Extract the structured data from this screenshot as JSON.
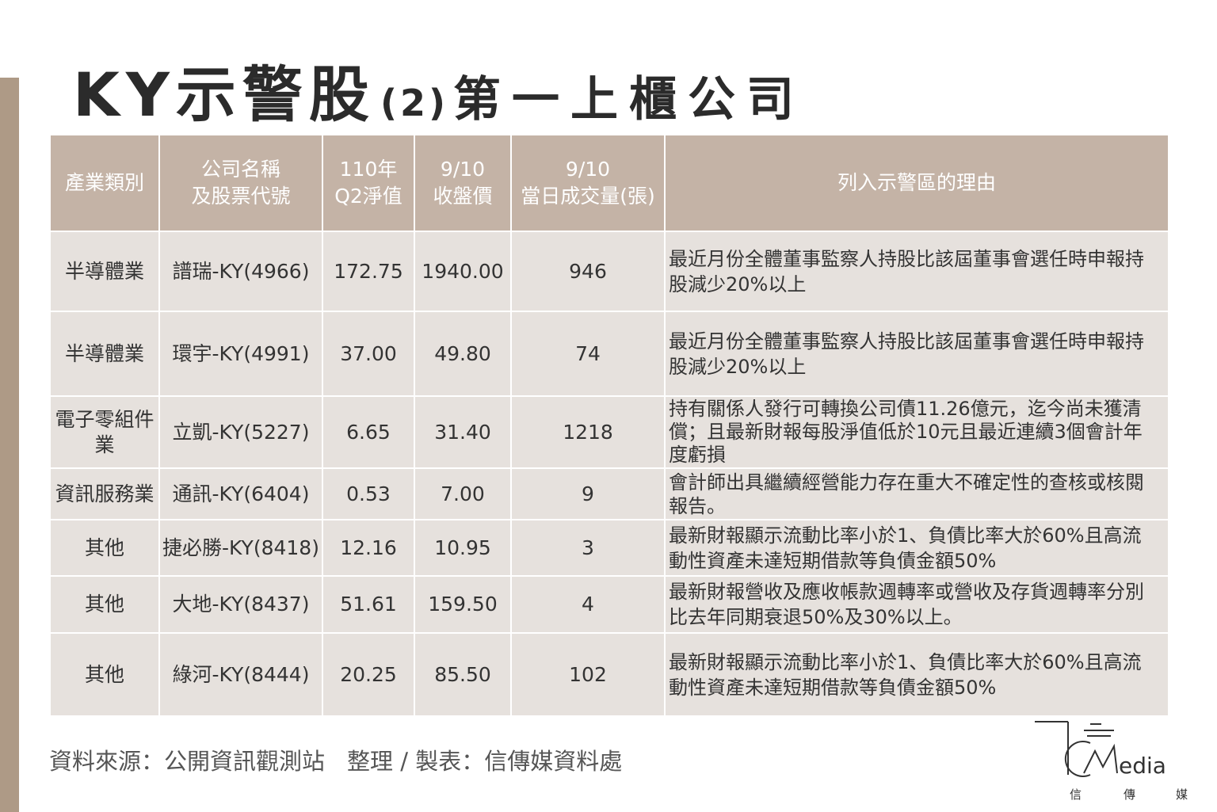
{
  "title": {
    "main": "KY示警股",
    "paren": "(2)",
    "sub": "第一上櫃公司"
  },
  "table": {
    "headers": [
      [
        "產業類別"
      ],
      [
        "公司名稱",
        "及股票代號"
      ],
      [
        "110年",
        "Q2淨值"
      ],
      [
        "9/10",
        "收盤價"
      ],
      [
        "9/10",
        "當日成交量(張)"
      ],
      [
        "列入示警區的理由"
      ]
    ],
    "rows": [
      {
        "industry": [
          "半導體業"
        ],
        "company": "譜瑞-KY(4966)",
        "nav": "172.75",
        "close": "1940.00",
        "volume": "946",
        "reason": [
          "最近月份全體董事監察人持股比該屆董事會選任時申報持",
          "股減少20%以上"
        ]
      },
      {
        "industry": [
          "半導體業"
        ],
        "company": "環宇-KY(4991)",
        "nav": "37.00",
        "close": "49.80",
        "volume": "74",
        "reason": [
          "最近月份全體董事監察人持股比該屆董事會選任時申報持",
          "股減少20%以上"
        ]
      },
      {
        "industry": [
          "電子零組件",
          "業"
        ],
        "company": "立凱-KY(5227)",
        "nav": "6.65",
        "close": "31.40",
        "volume": "1218",
        "reason": [
          "持有關係人發行可轉換公司債11.26億元，迄今尚未獲清",
          "償；且最新財報每股淨值低於10元且最近連續3個會計年",
          "度虧損"
        ]
      },
      {
        "industry": [
          "資訊服務業"
        ],
        "company": "通訊-KY(6404)",
        "nav": "0.53",
        "close": "7.00",
        "volume": "9",
        "reason": [
          "會計師出具繼續經營能力存在重大不確定性的查核或核閱",
          "報告。"
        ]
      },
      {
        "industry": [
          "其他"
        ],
        "company": "捷必勝-KY(8418)",
        "nav": "12.16",
        "close": "10.95",
        "volume": "3",
        "reason": [
          "最新財報顯示流動比率小於1、負債比率大於60%且高流",
          "動性資產未達短期借款等負債金額50%"
        ]
      },
      {
        "industry": [
          "其他"
        ],
        "company": "大地-KY(8437)",
        "nav": "51.61",
        "close": "159.50",
        "volume": "4",
        "reason": [
          "最新財報營收及應收帳款週轉率或營收及存貨週轉率分別",
          "比去年同期衰退50%及30%以上。"
        ]
      },
      {
        "industry": [
          "其他"
        ],
        "company": "綠河-KY(8444)",
        "nav": "20.25",
        "close": "85.50",
        "volume": "102",
        "reason": [
          "最新財報顯示流動比率小於1、負債比率大於60%且高流",
          "動性資產未達短期借款等負債金額50%"
        ]
      }
    ]
  },
  "footer": {
    "source": "資料來源：公開資訊觀測站",
    "compiled": "整理 / 製表：信傳媒資料處"
  },
  "logo": {
    "wordmark": "edia",
    "cn": [
      "信",
      "傳",
      "媒"
    ]
  },
  "colors": {
    "accent_bar": "#ae9a86",
    "header_bg": "#c4b3a6",
    "cell_bg": "#e6e1dd"
  }
}
